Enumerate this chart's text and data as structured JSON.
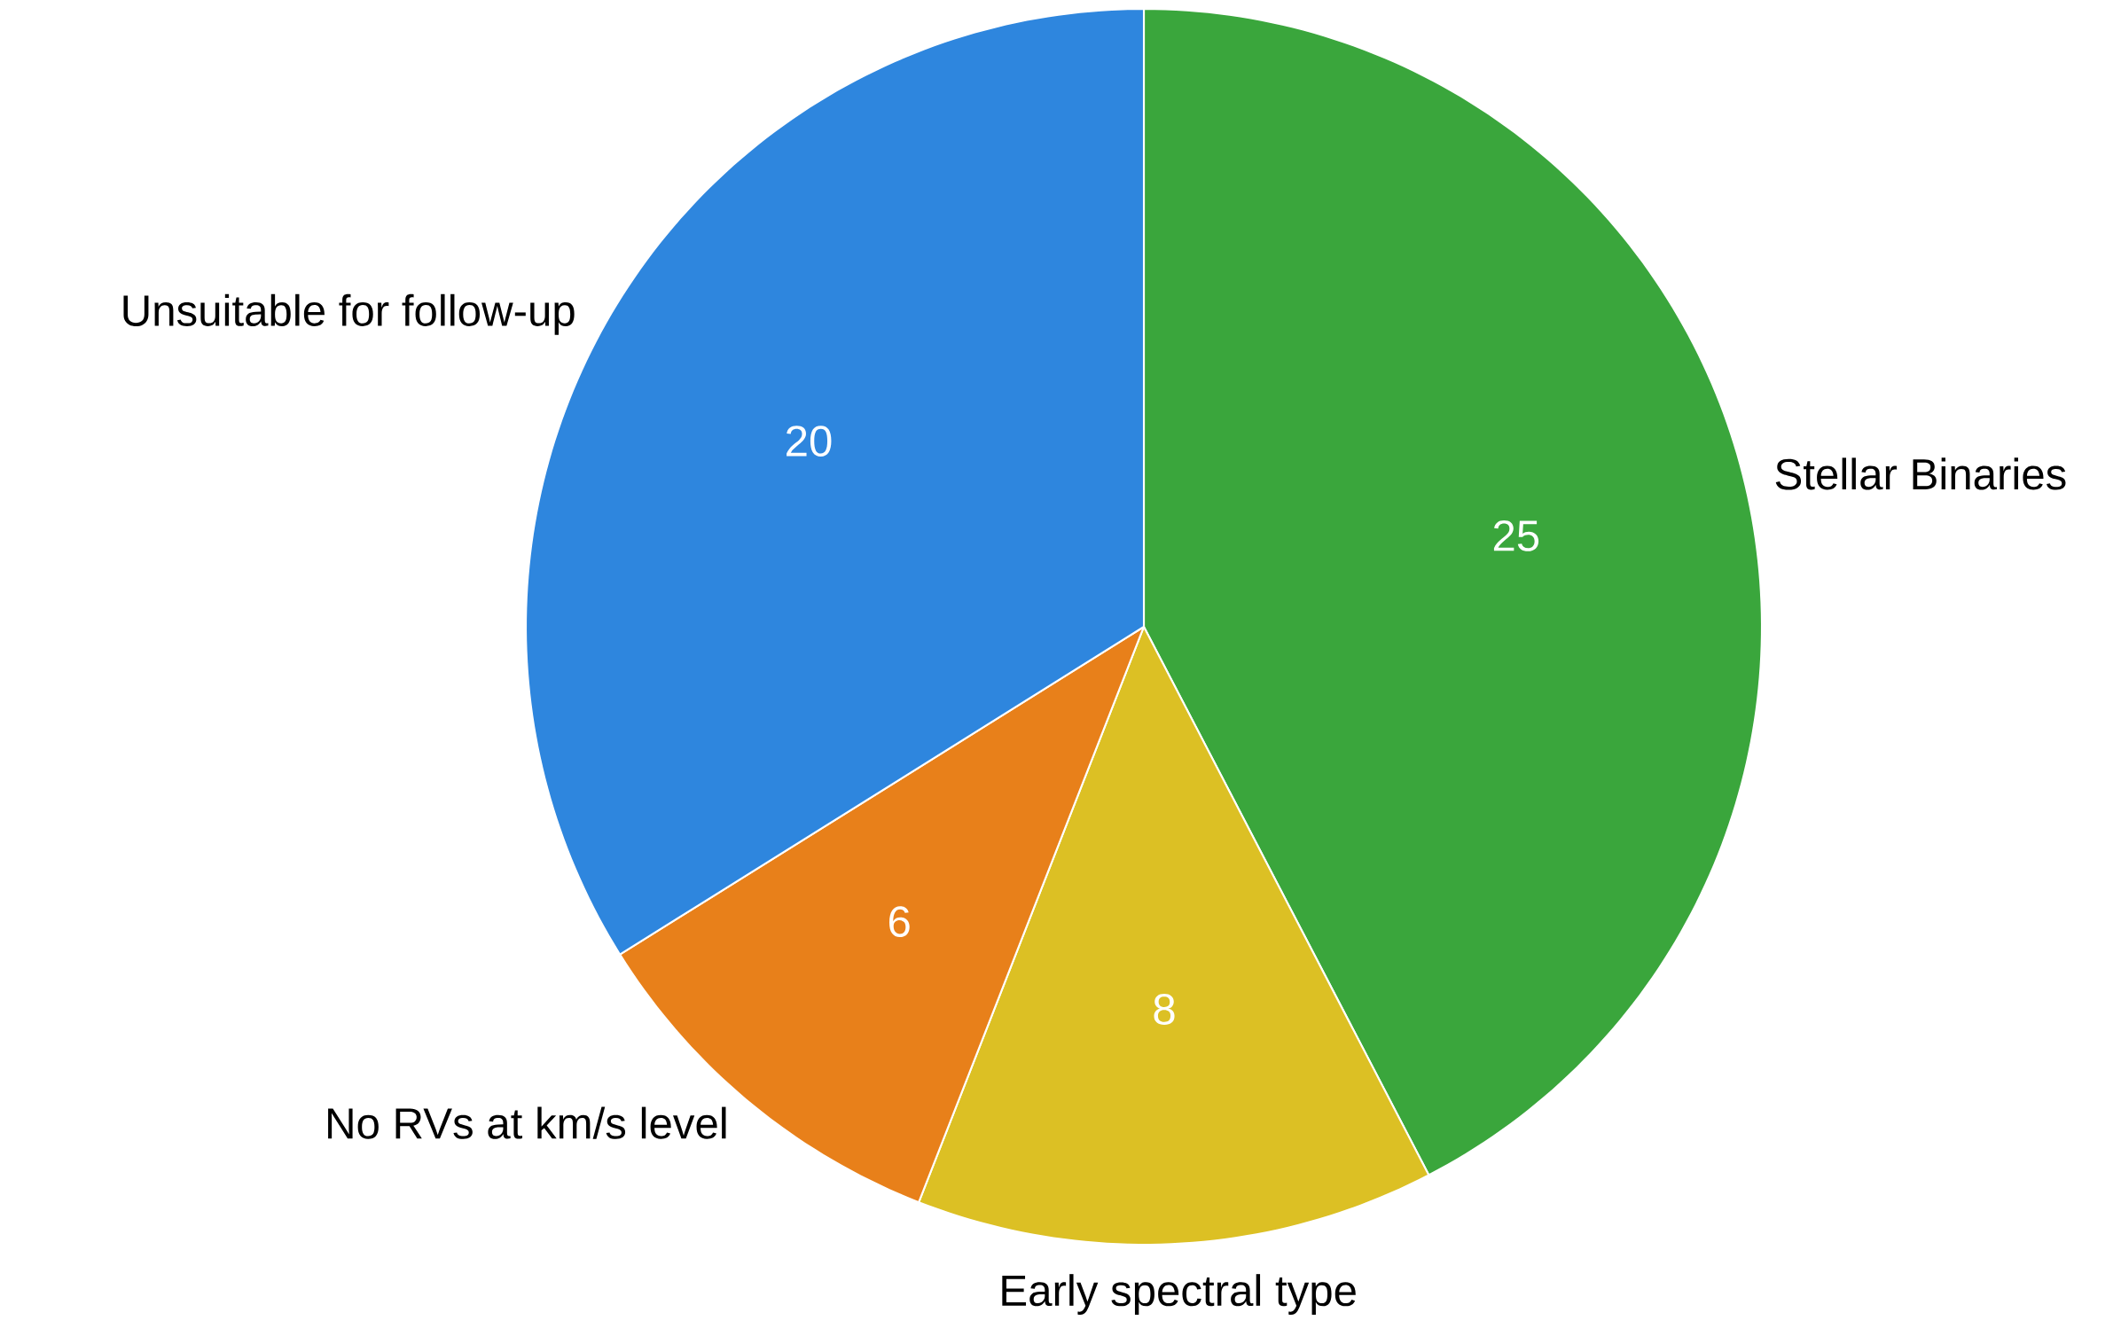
{
  "chart_data": {
    "type": "pie",
    "categories": [
      "Stellar Binaries",
      "Early spectral type",
      "No RVs at km/s level",
      "Unsuitable for follow-up"
    ],
    "values": [
      25,
      8,
      6,
      20
    ],
    "colors": [
      "#3aa63c",
      "#dcc024",
      "#e8801a",
      "#2e86de"
    ],
    "data_labels": true
  }
}
